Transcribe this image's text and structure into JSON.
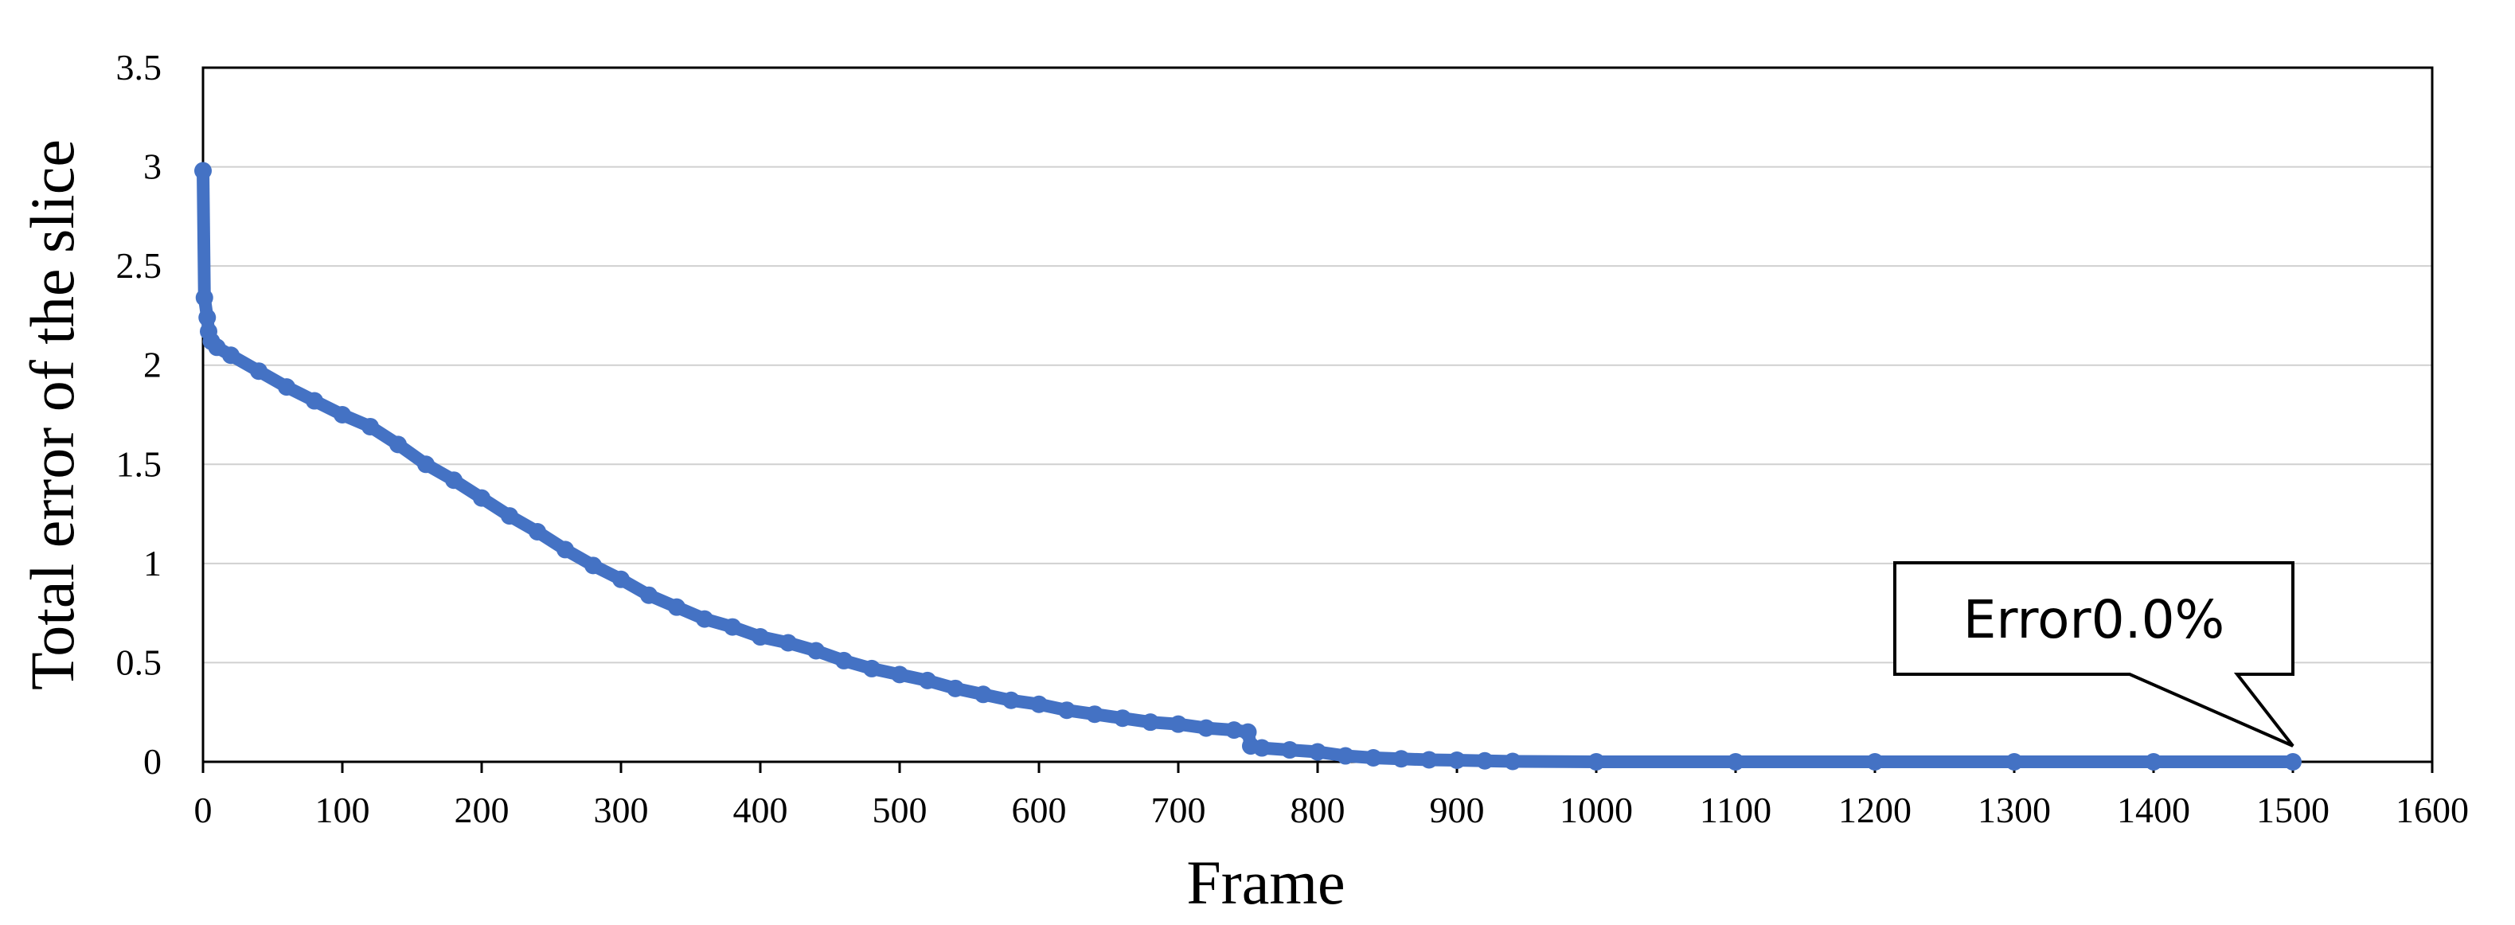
{
  "chart_data": {
    "type": "line",
    "title": "",
    "xlabel": "Frame",
    "ylabel": "Total error of the slice",
    "xlim": [
      0,
      1600
    ],
    "ylim": [
      0,
      3.5
    ],
    "x_ticks": [
      "0",
      "100",
      "200",
      "300",
      "400",
      "500",
      "600",
      "700",
      "800",
      "900",
      "1000",
      "1100",
      "1200",
      "1300",
      "1400",
      "1500",
      "1600"
    ],
    "y_ticks": [
      "0",
      "0.5",
      "1",
      "1.5",
      "2",
      "2.5",
      "3",
      "3.5"
    ],
    "grid": "horizontal",
    "legend": "none",
    "series_color": "#4472C4",
    "series": [
      {
        "x": [
          0,
          1,
          3,
          4,
          6,
          10,
          20,
          40,
          60,
          80,
          100,
          120,
          140,
          160,
          180,
          200,
          220,
          240,
          260,
          280,
          300,
          320,
          340,
          360,
          380,
          400,
          420,
          440,
          460,
          480,
          500,
          520,
          540,
          560,
          580,
          600,
          620,
          640,
          660,
          680,
          700,
          720,
          740,
          750,
          752,
          760,
          780,
          800,
          820,
          840,
          860,
          880,
          900,
          920,
          940,
          1000,
          1100,
          1200,
          1300,
          1400,
          1500
        ],
        "y": [
          2.98,
          2.34,
          2.24,
          2.17,
          2.12,
          2.09,
          2.05,
          1.97,
          1.89,
          1.82,
          1.75,
          1.69,
          1.6,
          1.5,
          1.42,
          1.33,
          1.24,
          1.16,
          1.07,
          0.99,
          0.92,
          0.84,
          0.78,
          0.72,
          0.68,
          0.63,
          0.6,
          0.56,
          0.51,
          0.47,
          0.44,
          0.41,
          0.37,
          0.34,
          0.31,
          0.29,
          0.26,
          0.24,
          0.22,
          0.2,
          0.19,
          0.17,
          0.16,
          0.15,
          0.08,
          0.07,
          0.06,
          0.05,
          0.03,
          0.02,
          0.015,
          0.01,
          0.008,
          0.005,
          0.002,
          0,
          0,
          0,
          0,
          0,
          0
        ]
      }
    ],
    "annotation": {
      "text": "Error0.0%",
      "target_x": 1500,
      "target_y": 0
    }
  }
}
